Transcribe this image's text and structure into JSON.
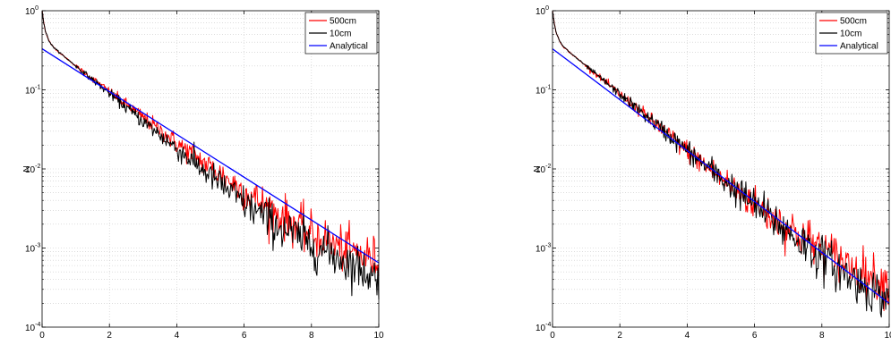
{
  "chart_data": [
    {
      "type": "line",
      "title": "",
      "xlabel": "",
      "ylabel": "N",
      "xlim": [
        0,
        10
      ],
      "ylim": [
        0.0001,
        1
      ],
      "yscale": "log",
      "grid": true,
      "legend_position": "top-right",
      "x_ticks": [
        "0",
        "2",
        "4",
        "6",
        "8",
        "10"
      ],
      "y_ticks": [
        {
          "base": "10",
          "exp": "-4"
        },
        {
          "base": "10",
          "exp": "-3"
        },
        {
          "base": "10",
          "exp": "-2"
        },
        {
          "base": "10",
          "exp": "-1"
        },
        {
          "base": "10",
          "exp": "0"
        }
      ],
      "series": [
        {
          "name": "500cm",
          "color": "#ff0000",
          "x": [
            0,
            0.05,
            0.1,
            0.2,
            0.3,
            0.5,
            1,
            2,
            3,
            4,
            5,
            6,
            7,
            8,
            9,
            10
          ],
          "y": [
            1.0,
            0.7,
            0.55,
            0.42,
            0.36,
            0.3,
            0.2,
            0.095,
            0.045,
            0.021,
            0.0105,
            0.0052,
            0.0027,
            0.0015,
            0.00095,
            0.0007
          ]
        },
        {
          "name": "10cm",
          "color": "#000000",
          "x": [
            0,
            0.05,
            0.1,
            0.2,
            0.3,
            0.5,
            1,
            2,
            3,
            4,
            5,
            6,
            7,
            8,
            9,
            10
          ],
          "y": [
            1.0,
            0.7,
            0.55,
            0.42,
            0.36,
            0.3,
            0.2,
            0.09,
            0.04,
            0.018,
            0.0082,
            0.0037,
            0.0019,
            0.0011,
            0.0007,
            0.0004
          ]
        },
        {
          "name": "Analytical",
          "color": "#0000ff",
          "x": [
            0,
            10
          ],
          "y": [
            0.33,
            0.00065
          ]
        }
      ]
    },
    {
      "type": "line",
      "title": "",
      "xlabel": "",
      "ylabel": "N",
      "xlim": [
        0,
        10
      ],
      "ylim": [
        0.0001,
        1
      ],
      "yscale": "log",
      "grid": true,
      "legend_position": "top-right",
      "x_ticks": [
        "0",
        "2",
        "4",
        "6",
        "8",
        "10"
      ],
      "y_ticks": [
        {
          "base": "10",
          "exp": "-4"
        },
        {
          "base": "10",
          "exp": "-3"
        },
        {
          "base": "10",
          "exp": "-2"
        },
        {
          "base": "10",
          "exp": "-1"
        },
        {
          "base": "10",
          "exp": "0"
        }
      ],
      "series": [
        {
          "name": "500cm",
          "color": "#ff0000",
          "x": [
            0,
            0.05,
            0.1,
            0.2,
            0.3,
            0.5,
            1,
            2,
            3,
            4,
            5,
            6,
            7,
            8,
            9,
            10
          ],
          "y": [
            1.0,
            0.7,
            0.55,
            0.42,
            0.36,
            0.3,
            0.2,
            0.088,
            0.039,
            0.017,
            0.0077,
            0.0036,
            0.0018,
            0.001,
            0.00055,
            0.00035
          ]
        },
        {
          "name": "10cm",
          "color": "#000000",
          "x": [
            0,
            0.05,
            0.1,
            0.2,
            0.3,
            0.5,
            1,
            2,
            3,
            4,
            5,
            6,
            7,
            8,
            9,
            10
          ],
          "y": [
            1.0,
            0.7,
            0.55,
            0.42,
            0.36,
            0.3,
            0.2,
            0.088,
            0.039,
            0.017,
            0.0077,
            0.0035,
            0.0016,
            0.00075,
            0.00038,
            0.00022
          ]
        },
        {
          "name": "Analytical",
          "color": "#0000ff",
          "x": [
            0,
            10
          ],
          "y": [
            0.33,
            0.0002
          ]
        }
      ]
    }
  ]
}
